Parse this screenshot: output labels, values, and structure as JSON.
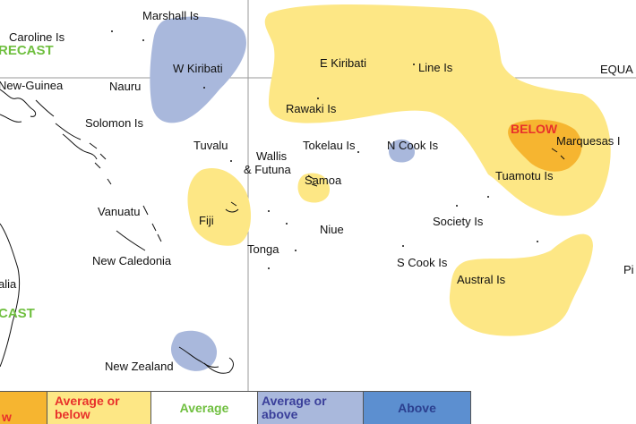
{
  "labels": {
    "caroline": "Caroline Is",
    "marshall": "Marshall Is",
    "w_kiribati": "W Kiribati",
    "e_kiribati": "E Kiribati",
    "line": "Line Is",
    "equator": "EQUA",
    "forecast_top": "RECAST",
    "new_guinea": "New-Guinea",
    "nauru": "Nauru",
    "rawaki": "Rawaki Is",
    "solomon": "Solomon Is",
    "tuvalu": "Tuvalu",
    "wallis": "Wallis",
    "futuna": "& Futuna",
    "tokelau": "Tokelau Is",
    "n_cook": "N Cook Is",
    "below_region": "BELOW",
    "marquesas": "Marquesas I",
    "samoa": "Samoa",
    "tuamotu": "Tuamotu Is",
    "fiji": "Fiji",
    "vanuatu": "Vanuatu",
    "niue": "Niue",
    "society": "Society Is",
    "tonga": "Tonga",
    "new_caledonia": "New Caledonia",
    "s_cook": "S Cook Is",
    "pi": "Pi",
    "austral": "Austral Is",
    "australia": "alia",
    "forecast_bottom": "CAST",
    "new_zealand": "New Zealand"
  },
  "legend": {
    "below": "w",
    "avg_below": "Average or below",
    "avg": "Average",
    "avg_above": "Average or above",
    "above": "Above"
  },
  "colors": {
    "below": "#f6b530",
    "avg_below": "#fde785",
    "avg_above": "#a9b8dc",
    "above": "#5c8fd0"
  }
}
